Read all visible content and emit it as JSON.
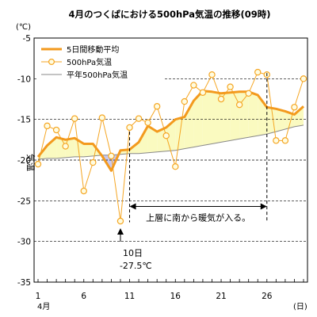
{
  "chart_data": {
    "type": "line",
    "title": "4月のつくばにおける500hPa気温の推移(09時)",
    "ylabel": "気温",
    "yunit": "(℃)",
    "xunit": "(日)",
    "month_label": "4月",
    "ylim": [
      -35,
      -5
    ],
    "xlim": [
      1,
      30
    ],
    "yticks": [
      -5,
      -10,
      -15,
      -20,
      -25,
      -30,
      -35
    ],
    "xticks": [
      1,
      6,
      11,
      16,
      21,
      26
    ],
    "grid": "y-dashed",
    "legend_position": "top-left",
    "x": [
      1,
      2,
      3,
      4,
      5,
      6,
      7,
      8,
      9,
      10,
      11,
      12,
      13,
      14,
      15,
      16,
      17,
      18,
      19,
      20,
      21,
      22,
      23,
      24,
      25,
      26,
      27,
      28,
      29,
      30
    ],
    "series": [
      {
        "name": "5日間移動平均",
        "color": "#f39a1e",
        "values": [
          -19.6,
          -18.2,
          -17.2,
          -17.5,
          -17.3,
          -18.0,
          -18.0,
          -19.5,
          -21.3,
          -18.8,
          -18.7,
          -17.8,
          -15.8,
          -16.5,
          -16.0,
          -15.0,
          -14.7,
          -12.7,
          -11.5,
          -11.6,
          -11.8,
          -11.7,
          -11.6,
          -11.6,
          -12.0,
          -13.5,
          -13.7,
          -14.0,
          -14.4,
          -13.4
        ]
      },
      {
        "name": "500hPa気温",
        "color": "#f5a623",
        "marker": "circle",
        "values": [
          -20.5,
          -15.8,
          -16.3,
          -18.3,
          -14.9,
          -23.8,
          -20.3,
          -14.8,
          -19.5,
          -27.5,
          -16.0,
          -14.9,
          -15.4,
          -13.4,
          -17.0,
          -20.8,
          -12.8,
          -10.8,
          -11.7,
          -9.5,
          -12.5,
          -11.0,
          -13.2,
          -11.8,
          -9.2,
          -9.5,
          -17.6,
          -17.6,
          -13.5,
          -10.0
        ]
      },
      {
        "name": "平年500hPa気温",
        "color": "#888888",
        "values": [
          -19.9,
          -19.8,
          -19.8,
          -19.7,
          -19.6,
          -19.6,
          -19.5,
          -19.4,
          -19.4,
          -19.3,
          -19.2,
          -19.2,
          -19.1,
          -19.0,
          -18.9,
          -18.8,
          -18.6,
          -18.4,
          -18.2,
          -18.0,
          -17.8,
          -17.6,
          -17.4,
          -17.2,
          -17.0,
          -16.8,
          -16.5,
          -16.2,
          -15.9,
          -15.7
        ]
      }
    ],
    "annotations": {
      "min_day": "10日",
      "min_value": "-27.5℃",
      "warm_air_text": "上層に南から暖気が入る。",
      "warm_air_range": [
        11,
        26
      ],
      "warm_air_y": -25.7
    }
  }
}
